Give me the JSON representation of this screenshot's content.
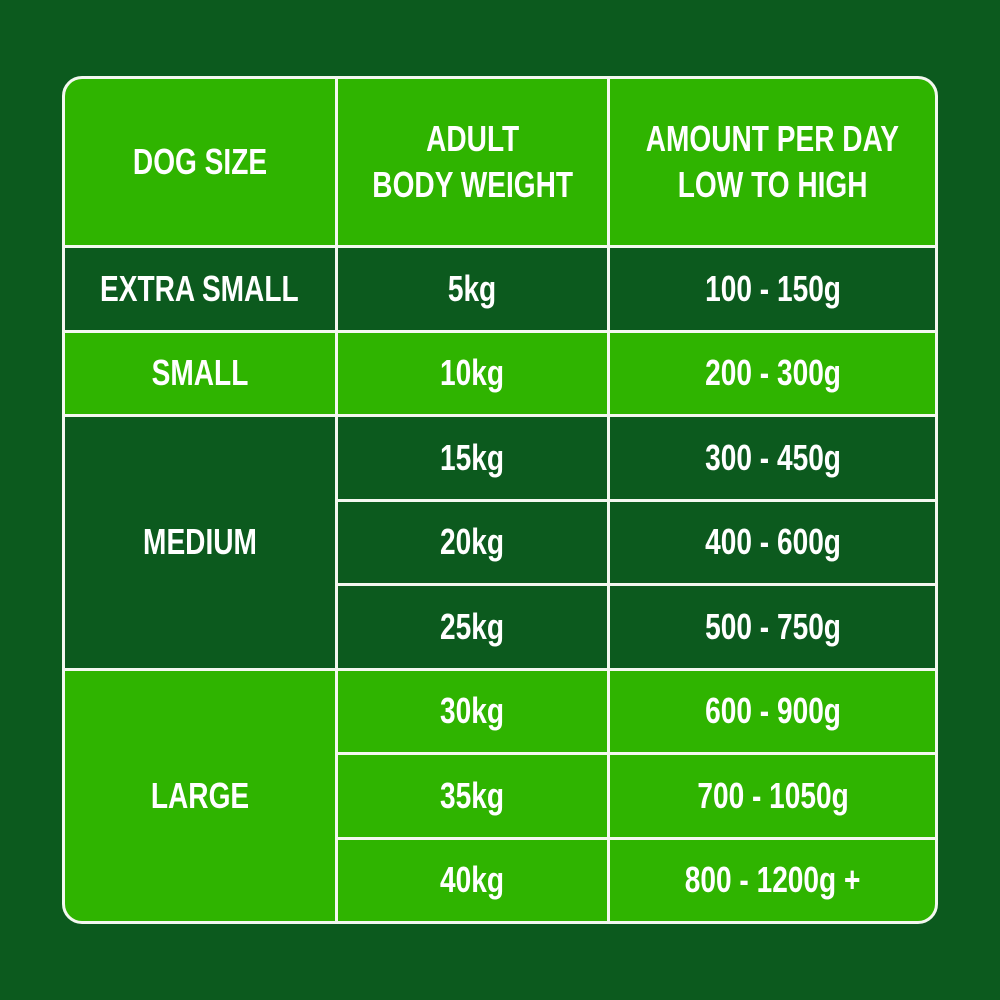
{
  "table": {
    "header": [
      [
        "DOG SIZE"
      ],
      [
        "ADULT",
        "BODY WEIGHT"
      ],
      [
        "AMOUNT PER DAY",
        "LOW TO HIGH"
      ]
    ],
    "groups": [
      {
        "size": "EXTRA SMALL",
        "rows": [
          [
            "5kg",
            "100 - 150g"
          ]
        ]
      },
      {
        "size": "SMALL",
        "rows": [
          [
            "10kg",
            "200 - 300g"
          ]
        ]
      },
      {
        "size": "MEDIUM",
        "rows": [
          [
            "15kg",
            "300 - 450g"
          ],
          [
            "20kg",
            "400 - 600g"
          ],
          [
            "25kg",
            "500 - 750g"
          ]
        ]
      },
      {
        "size": "LARGE",
        "rows": [
          [
            "30kg",
            "600 - 900g"
          ],
          [
            "35kg",
            "700 - 1050g"
          ],
          [
            "40kg",
            "800 - 1200g +"
          ]
        ]
      }
    ]
  }
}
